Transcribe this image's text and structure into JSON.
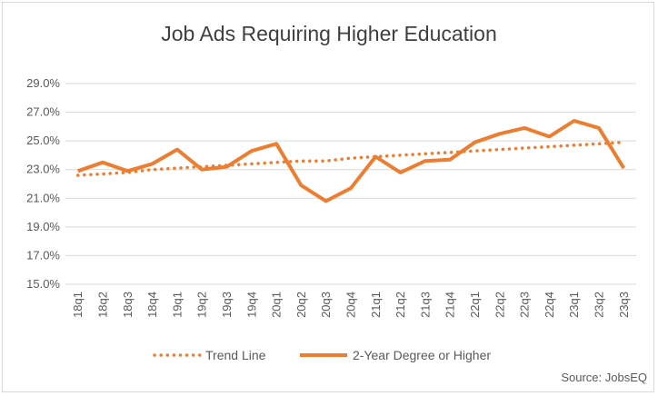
{
  "chart_data": {
    "type": "line",
    "title": "Job Ads Requiring Higher Education",
    "categories": [
      "18q1",
      "18q2",
      "18q3",
      "18q4",
      "19q1",
      "19q2",
      "19q3",
      "19q4",
      "20q1",
      "20q2",
      "20q3",
      "20q4",
      "21q1",
      "21q2",
      "21q3",
      "21q4",
      "22q1",
      "22q2",
      "22q3",
      "22q4",
      "23q1",
      "23q2",
      "23q3"
    ],
    "y_ticks": [
      "15.0%",
      "17.0%",
      "19.0%",
      "21.0%",
      "23.0%",
      "25.0%",
      "27.0%",
      "29.0%"
    ],
    "ylim": [
      15,
      29
    ],
    "ystep": 2,
    "grid": true,
    "legend_position": "bottom",
    "series": [
      {
        "name": "Trend Line",
        "style": "dotted",
        "color": "#ed7d31",
        "values": [
          22.6,
          22.7,
          22.8,
          23.0,
          23.1,
          23.2,
          23.3,
          23.4,
          23.5,
          23.6,
          23.6,
          23.8,
          23.9,
          24.0,
          24.1,
          24.2,
          24.3,
          24.4,
          24.5,
          24.6,
          24.7,
          24.8,
          24.9
        ]
      },
      {
        "name": "2-Year Degree or Higher",
        "style": "solid",
        "color": "#ed7d31",
        "values": [
          22.9,
          23.5,
          22.9,
          23.4,
          24.4,
          23.0,
          23.2,
          24.3,
          24.8,
          21.9,
          20.8,
          21.7,
          23.9,
          22.8,
          23.6,
          23.7,
          24.9,
          25.5,
          25.9,
          25.3,
          26.4,
          25.9,
          23.1
        ]
      }
    ],
    "source": "Source: JobsEQ"
  }
}
